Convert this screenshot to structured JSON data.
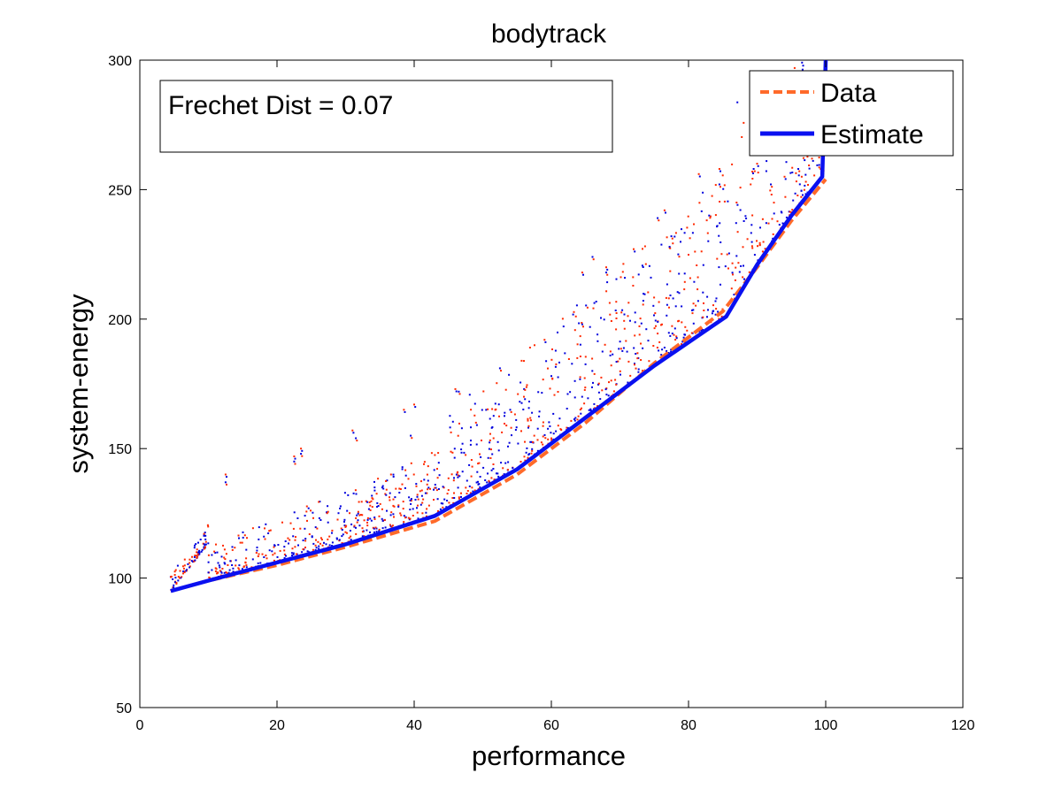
{
  "chart_data": {
    "type": "scatter",
    "title": "bodytrack",
    "xlabel": "performance",
    "ylabel": "system-energy",
    "xlim": [
      0,
      120
    ],
    "ylim": [
      50,
      300
    ],
    "xticks": [
      "0",
      "20",
      "40",
      "60",
      "80",
      "100",
      "120"
    ],
    "yticks": [
      "50",
      "100",
      "150",
      "200",
      "250",
      "300"
    ],
    "grid": false,
    "annotation": "Frechet Dist = 0.07",
    "legend": {
      "placement": "top-right",
      "entries": [
        "Data",
        "Estimate"
      ]
    },
    "colors": {
      "data_line": "#ff6a2a",
      "estimate_line": "#0a10f0",
      "scatter_red": "#ff2a00",
      "scatter_blue": "#0000dd"
    },
    "series": [
      {
        "name": "Data",
        "style": "dashed",
        "x": [
          4.5,
          10,
          20,
          30,
          43,
          55,
          65,
          75,
          85,
          90,
          95,
          100
        ],
        "y": [
          95,
          99,
          105,
          112,
          122,
          140,
          160,
          183,
          203,
          220,
          238,
          254
        ]
      },
      {
        "name": "Estimate",
        "style": "solid",
        "x": [
          4.5,
          10,
          20,
          30,
          43,
          55,
          65,
          75,
          85.5,
          90,
          95,
          99.5,
          100
        ],
        "y": [
          95,
          99,
          106,
          113,
          124,
          142,
          162,
          182,
          201,
          221,
          240,
          255,
          300
        ]
      }
    ],
    "scatter_clouds": [
      {
        "x_range": [
          4.5,
          10
        ],
        "y_base": 95,
        "spread": 15
      },
      {
        "x_range": [
          10,
          45
        ],
        "y_base": "frontier",
        "spread": 30
      },
      {
        "x_range": [
          45,
          85
        ],
        "y_base": "frontier",
        "spread": 45
      },
      {
        "x_range": [
          85,
          100
        ],
        "y_base": "frontier",
        "spread": 60
      }
    ],
    "outliers": [
      [
        12.5,
        140
      ],
      [
        12.5,
        137
      ],
      [
        22.5,
        147
      ],
      [
        22.5,
        145
      ],
      [
        23.5,
        150
      ],
      [
        23.5,
        148
      ],
      [
        31,
        157
      ],
      [
        31.5,
        154
      ],
      [
        38.5,
        165
      ],
      [
        39.5,
        155
      ],
      [
        40,
        167
      ],
      [
        46.5,
        172
      ],
      [
        46,
        173
      ],
      [
        52.5,
        181
      ],
      [
        59,
        192
      ],
      [
        64.5,
        198
      ],
      [
        64.5,
        218
      ],
      [
        66,
        224
      ],
      [
        68,
        220
      ],
      [
        68,
        218
      ],
      [
        72,
        227
      ],
      [
        75.5,
        239
      ],
      [
        76.5,
        242
      ],
      [
        77.5,
        232
      ],
      [
        81.5,
        256
      ],
      [
        83,
        240
      ],
      [
        84.5,
        258
      ],
      [
        84.5,
        252
      ],
      [
        87,
        245
      ],
      [
        89.5,
        258
      ],
      [
        90,
        260
      ],
      [
        92,
        252
      ],
      [
        94,
        255
      ],
      [
        96,
        258
      ],
      [
        98,
        262
      ],
      [
        78.5,
        225
      ],
      [
        56,
        170
      ],
      [
        54,
        165
      ],
      [
        49,
        160
      ],
      [
        60,
        178
      ]
    ]
  }
}
